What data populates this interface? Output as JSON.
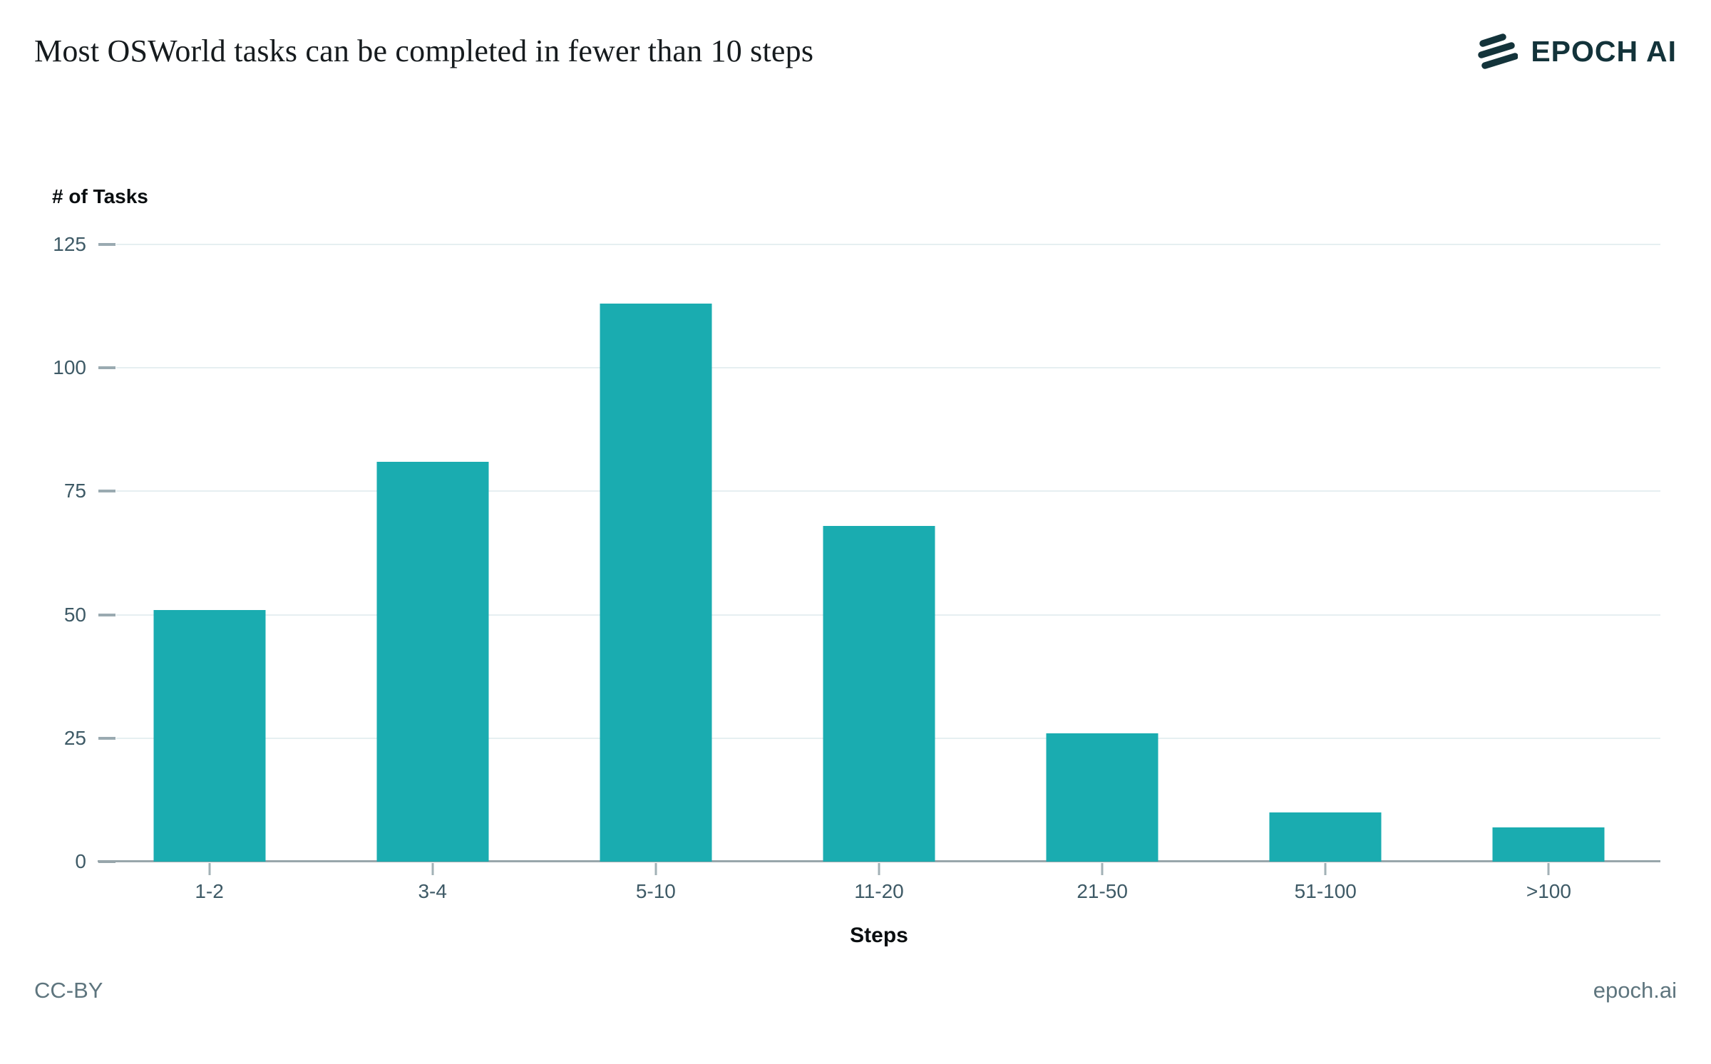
{
  "header": {
    "title": "Most OSWorld tasks can be completed in fewer than 10 steps",
    "logo_text": "EPOCH AI"
  },
  "footer": {
    "license": "CC-BY",
    "site": "epoch.ai"
  },
  "colors": {
    "bar": "#1AACB0",
    "brand_dark": "#13333A",
    "gridline": "#E6EFF1",
    "axis_line": "#98A6AB",
    "tick_dash": "#9AAAB1",
    "tick_label": "#3E5A66",
    "footer_text": "#5E757E"
  },
  "chart_data": {
    "type": "bar",
    "title": "Most OSWorld tasks can be completed in fewer than 10 steps",
    "categories": [
      "1-2",
      "3-4",
      "5-10",
      "11-20",
      "21-50",
      "51-100",
      ">100"
    ],
    "values": [
      51,
      81,
      113,
      68,
      26,
      10,
      7
    ],
    "xlabel": "Steps",
    "ylabel": "# of Tasks",
    "ylim": [
      0,
      125
    ],
    "yticks": [
      0,
      25,
      50,
      75,
      100,
      125
    ],
    "grid": true,
    "legend": "none",
    "bar_color": "#1AACB0"
  }
}
